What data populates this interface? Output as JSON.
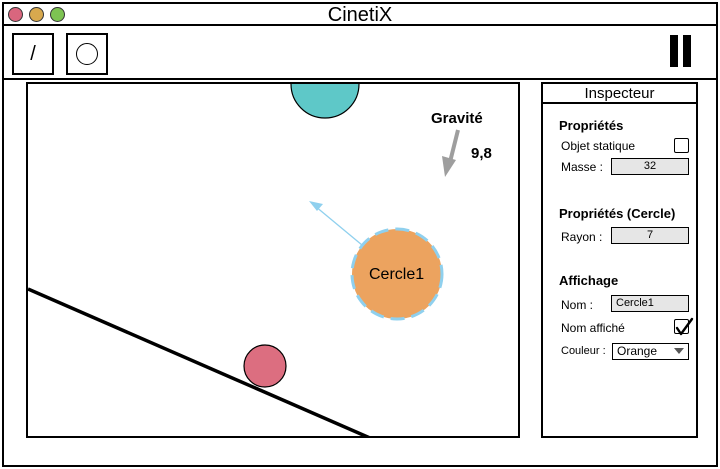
{
  "window": {
    "title": "CinetiX",
    "traffic_lights": [
      {
        "name": "close",
        "color": "#d9667e"
      },
      {
        "name": "minimize",
        "color": "#d8a94e"
      },
      {
        "name": "maximize",
        "color": "#7dc352"
      }
    ]
  },
  "toolbar": {
    "line_tool_label": "/",
    "circle_tool_icon": "circle-outline-icon",
    "pause_icon": "pause-icon"
  },
  "canvas": {
    "gravity_label": "Gravité",
    "gravity_value": "9,8",
    "selected_object_label": "Cercle1",
    "colors": {
      "teal_circle": "#5ec8c8",
      "orange_circle": "#eca35f",
      "selection_outline": "#8fd0ee",
      "velocity_arrow": "#8fd0ee",
      "pink_circle": "#dc6e80",
      "gravity_arrow": "#9e9e9e"
    }
  },
  "inspector": {
    "header": "Inspecteur",
    "properties": {
      "title": "Propriétés",
      "static_label": "Objet statique",
      "static_checked": false,
      "mass_label": "Masse :",
      "mass_value": "32"
    },
    "circle_properties": {
      "title": "Propriétés (Cercle)",
      "radius_label": "Rayon :",
      "radius_value": "7"
    },
    "display": {
      "title": "Affichage",
      "name_label": "Nom :",
      "name_value": "Cercle1",
      "name_shown_label": "Nom affiché",
      "name_shown_checked": true,
      "color_label": "Couleur :",
      "color_value": "Orange"
    }
  }
}
